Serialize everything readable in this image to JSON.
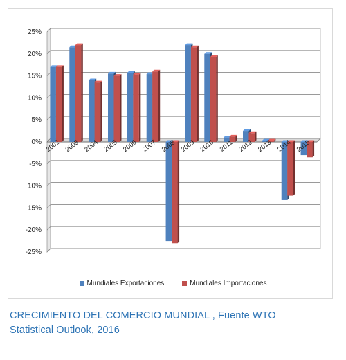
{
  "chart_data": {
    "type": "bar",
    "categories": [
      "2002",
      "2003",
      "2004",
      "2005",
      "2006",
      "2007",
      "2008",
      "2009",
      "2010",
      "2011",
      "2012",
      "2013",
      "2014",
      "2015"
    ],
    "series": [
      {
        "name": "Mundiales Exportaciones",
        "color": "#4f81bd",
        "values": [
          17,
          21.5,
          14,
          15.5,
          15.7,
          15.4,
          -22.5,
          22,
          20,
          1,
          2.5,
          0.3,
          -13.2,
          -3
        ]
      },
      {
        "name": "Mundiales Importaciones",
        "color": "#c0504d",
        "values": [
          17,
          22,
          13.5,
          15,
          15.3,
          16,
          -23,
          21.5,
          19.3,
          1.2,
          2,
          0.3,
          -12.2,
          -3.5
        ]
      }
    ],
    "yticks": [
      "25%",
      "20%",
      "15%",
      "10%",
      "5%",
      "0%",
      "-5%",
      "-10%",
      "-15%",
      "-20%",
      "-25%"
    ],
    "ylim": [
      -25,
      25
    ],
    "grid": true,
    "legend_position": "bottom"
  },
  "caption": {
    "line1": "CRECIMIENTO DEL COMERCIO MUNDIAL , Fuente WTO",
    "line2": "Statistical Outlook, 2016"
  }
}
